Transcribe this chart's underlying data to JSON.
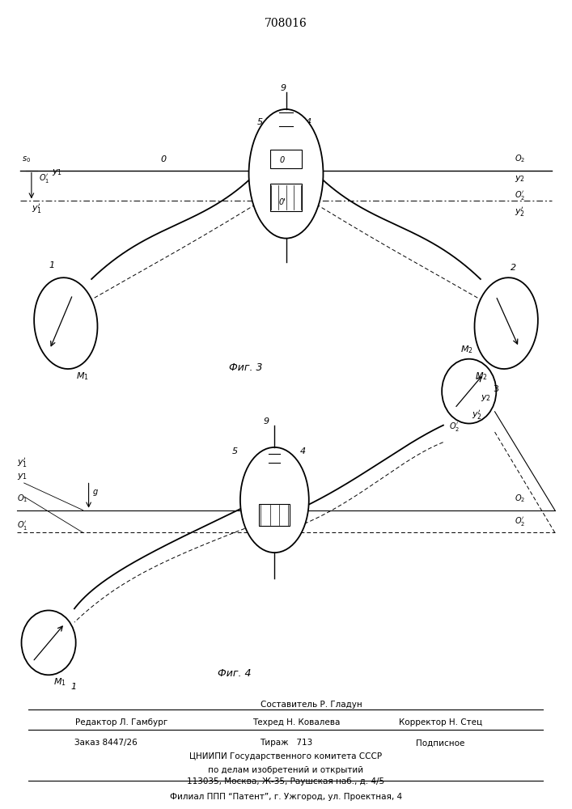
{
  "title": "708016",
  "fig3_caption": "Фиг. 3",
  "fig4_caption": "Фиг. 4",
  "footer_line0": "Составитель Р. Гладун",
  "footer_line1": "Редактор Л. Гамбург",
  "footer_line1b": "Техред Н. Ковалева",
  "footer_line1c": "Корректор Н. Стец",
  "footer_line2a": "Заказ 8447/26",
  "footer_line2b": "Тираж   713",
  "footer_line2c": "Подписное",
  "footer_line3": "ЦНИИПИ Государственного комитета СССР",
  "footer_line4": "по делам изобретений и открытий",
  "footer_line5": "113035, Москва, Ж-35, Раушская наб., д. 4/5",
  "footer_line6": "Филиал ППП “Патент”, г. Ужгород, ул. Проектная, 4"
}
